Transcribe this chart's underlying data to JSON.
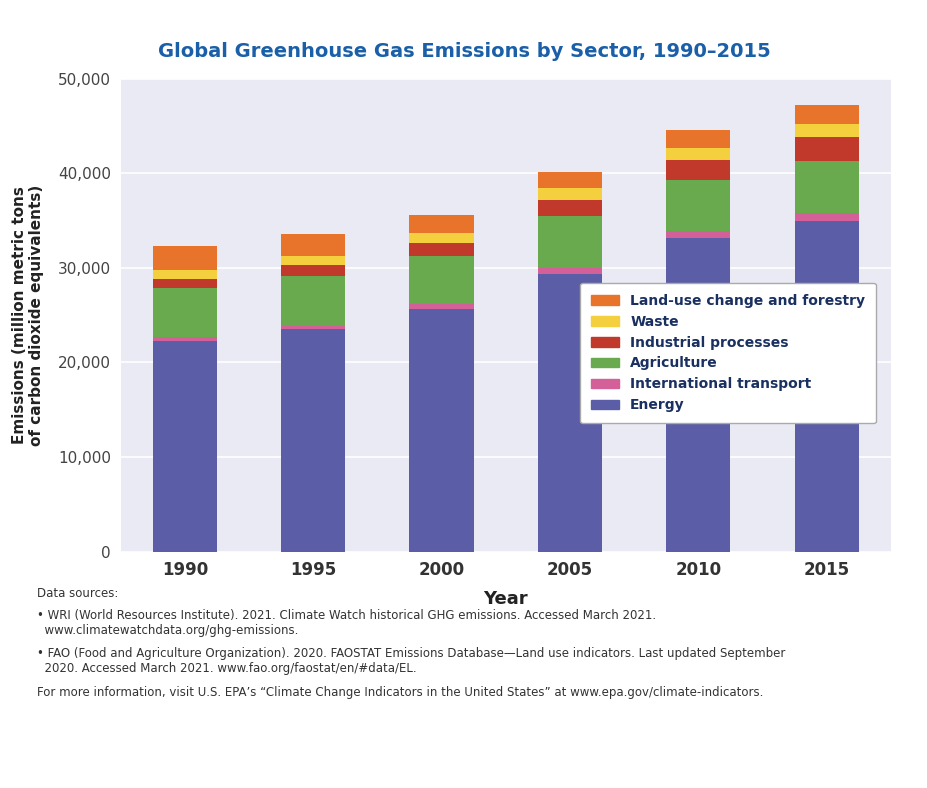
{
  "years": [
    "1990",
    "1995",
    "2000",
    "2005",
    "2010",
    "2015"
  ],
  "sectors": {
    "Energy": [
      22300,
      23500,
      25700,
      29400,
      33200,
      35000
    ],
    "International transport": [
      350,
      400,
      500,
      600,
      700,
      800
    ],
    "Agriculture": [
      5200,
      5200,
      5100,
      5500,
      5400,
      5500
    ],
    "Industrial processes": [
      1000,
      1200,
      1300,
      1700,
      2100,
      2500
    ],
    "Waste": [
      900,
      1000,
      1100,
      1200,
      1300,
      1400
    ],
    "Land-use change and forestry": [
      2600,
      2300,
      1900,
      1700,
      1900,
      2000
    ]
  },
  "bar_widths": [
    0.35,
    0.35,
    0.35,
    0.6,
    0.6,
    0.6
  ],
  "colors": {
    "Energy": "#5b5ea6",
    "International transport": "#d4609a",
    "Agriculture": "#6aaa4e",
    "Industrial processes": "#c0392b",
    "Waste": "#f4d03f",
    "Land-use change and forestry": "#e8732a"
  },
  "title": "Global Greenhouse Gas Emissions by Sector, 1990–2015",
  "xlabel": "Year",
  "ylabel": "Emissions (million metric tons\nof carbon dioxide equivalents)",
  "ylim": [
    0,
    50000
  ],
  "yticks": [
    0,
    10000,
    20000,
    30000,
    40000,
    50000
  ],
  "plot_bg_color": "#eaeaf4",
  "title_color": "#1a5fa8",
  "footer_text1": "Data sources:",
  "footer_text2": "• WRI (World Resources Institute). 2021. Climate Watch historical GHG emissions. Accessed March 2021.\n  www.climatewatchdata.org/ghg-emissions.",
  "footer_text3": "• FAO (Food and Agriculture Organization). 2020. FAOSTAT Emissions Database—Land use indicators. Last updated September\n  2020. Accessed March 2021. www.fao.org/faostat/en/#data/EL.",
  "footer_text4": "For more information, visit U.S. EPA’s “Climate Change Indicators in the United States” at www.epa.gov/climate-indicators.",
  "stack_order": [
    "Energy",
    "International transport",
    "Agriculture",
    "Industrial processes",
    "Waste",
    "Land-use change and forestry"
  ]
}
